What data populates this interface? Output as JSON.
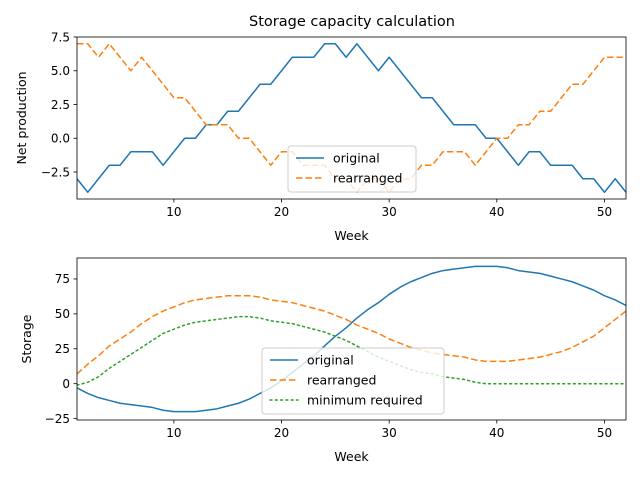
{
  "title": "Storage capacity calculation",
  "chart_data": [
    {
      "type": "line",
      "xlabel": "Week",
      "ylabel": "Net production",
      "xlim": [
        1,
        52
      ],
      "ylim": [
        -4.5,
        7.5
      ],
      "xticks": [
        10,
        20,
        30,
        40,
        50
      ],
      "yticks": [
        -2.5,
        0.0,
        2.5,
        5.0,
        7.5
      ],
      "ytick_labels": [
        "−2.5",
        "0.0",
        "2.5",
        "5.0",
        "7.5"
      ],
      "legend_position": "bottom-center",
      "x": [
        1,
        2,
        3,
        4,
        5,
        6,
        7,
        8,
        9,
        10,
        11,
        12,
        13,
        14,
        15,
        16,
        17,
        18,
        19,
        20,
        21,
        22,
        23,
        24,
        25,
        26,
        27,
        28,
        29,
        30,
        31,
        32,
        33,
        34,
        35,
        36,
        37,
        38,
        39,
        40,
        41,
        42,
        43,
        44,
        45,
        46,
        47,
        48,
        49,
        50,
        51,
        52
      ],
      "series": [
        {
          "name": "original",
          "color": "#1f77b4",
          "dash": "solid",
          "values": [
            -3,
            -4,
            -3,
            -2,
            -2,
            -1,
            -1,
            -1,
            -2,
            -1,
            0,
            0,
            1,
            1,
            2,
            2,
            3,
            4,
            4,
            5,
            6,
            6,
            6,
            7,
            7,
            6,
            7,
            6,
            5,
            6,
            5,
            4,
            3,
            3,
            2,
            1,
            1,
            1,
            0,
            0,
            -1,
            -2,
            -1,
            -1,
            -2,
            -2,
            -2,
            -3,
            -3,
            -4,
            -3,
            -4
          ]
        },
        {
          "name": "rearranged",
          "color": "#ff7f0e",
          "dash": "dashed",
          "values": [
            7,
            7,
            6,
            7,
            6,
            5,
            6,
            5,
            4,
            3,
            3,
            2,
            1,
            1,
            1,
            0,
            0,
            -1,
            -2,
            -1,
            -1,
            -2,
            -2,
            -2,
            -3,
            -3,
            -4,
            -3,
            -3,
            -4,
            -3,
            -3,
            -2,
            -2,
            -1,
            -1,
            -1,
            -2,
            -1,
            0,
            0,
            1,
            1,
            2,
            2,
            3,
            4,
            4,
            5,
            6,
            6,
            6
          ]
        }
      ]
    },
    {
      "type": "line",
      "xlabel": "Week",
      "ylabel": "Storage",
      "xlim": [
        1,
        52
      ],
      "ylim": [
        -26,
        90
      ],
      "xticks": [
        10,
        20,
        30,
        40,
        50
      ],
      "yticks": [
        -25,
        0,
        25,
        50,
        75
      ],
      "ytick_labels": [
        "−25",
        "0",
        "25",
        "50",
        "75"
      ],
      "legend_position": "bottom-center",
      "x": [
        1,
        2,
        3,
        4,
        5,
        6,
        7,
        8,
        9,
        10,
        11,
        12,
        13,
        14,
        15,
        16,
        17,
        18,
        19,
        20,
        21,
        22,
        23,
        24,
        25,
        26,
        27,
        28,
        29,
        30,
        31,
        32,
        33,
        34,
        35,
        36,
        37,
        38,
        39,
        40,
        41,
        42,
        43,
        44,
        45,
        46,
        47,
        48,
        49,
        50,
        51,
        52
      ],
      "series": [
        {
          "name": "original",
          "color": "#1f77b4",
          "dash": "solid",
          "values": [
            -3,
            -7,
            -10,
            -12,
            -14,
            -15,
            -16,
            -17,
            -19,
            -20,
            -20,
            -20,
            -19,
            -18,
            -16,
            -14,
            -11,
            -7,
            -3,
            2,
            8,
            14,
            20,
            27,
            34,
            40,
            47,
            53,
            58,
            64,
            69,
            73,
            76,
            79,
            81,
            82,
            83,
            84,
            84,
            84,
            83,
            81,
            80,
            79,
            77,
            75,
            73,
            70,
            67,
            63,
            60,
            56
          ]
        },
        {
          "name": "rearranged",
          "color": "#ff7f0e",
          "dash": "dashed",
          "values": [
            7,
            14,
            20,
            27,
            32,
            37,
            43,
            48,
            52,
            55,
            58,
            60,
            61,
            62,
            63,
            63,
            63,
            62,
            60,
            59,
            58,
            56,
            54,
            52,
            49,
            46,
            42,
            39,
            36,
            32,
            29,
            26,
            24,
            22,
            21,
            20,
            19,
            17,
            16,
            16,
            16,
            17,
            18,
            19,
            21,
            23,
            26,
            30,
            34,
            40,
            46,
            52
          ]
        },
        {
          "name": "minimum required",
          "color": "#2ca02c",
          "dash": "dotted",
          "values": [
            -1,
            1,
            5,
            11,
            16,
            21,
            26,
            31,
            36,
            39,
            42,
            44,
            45,
            46,
            47,
            48,
            48,
            47,
            45,
            44,
            43,
            41,
            39,
            37,
            34,
            31,
            27,
            23,
            19,
            16,
            13,
            10,
            8,
            7,
            5,
            4,
            3,
            1,
            0,
            0,
            0,
            0,
            0,
            0,
            0,
            0,
            0,
            0,
            0,
            0,
            0,
            0
          ]
        }
      ]
    }
  ]
}
